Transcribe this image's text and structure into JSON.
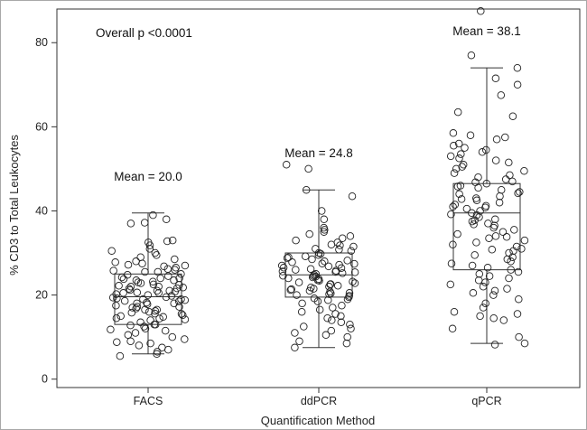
{
  "chart_data": {
    "type": "box-scatter",
    "title": "",
    "xlabel": "Quantification Method",
    "ylabel": "% CD3 to Total Leukocytes",
    "ylim": [
      -2,
      88
    ],
    "yticks": [
      0,
      20,
      40,
      60,
      80
    ],
    "categories": [
      "FACS",
      "ddPCR",
      "qPCR"
    ],
    "overall_p": "Overall p <0.0001",
    "grid": false,
    "series": [
      {
        "category": "FACS",
        "mean_label": "Mean = 20.0",
        "mean": 20.0,
        "box": {
          "whisker_low": 6,
          "q1": 13,
          "median": 19.6,
          "q3": 25,
          "whisker_high": 39.5
        },
        "points": [
          38,
          39,
          37.2,
          37,
          33,
          32.8,
          32.5,
          31.8,
          31,
          30.5,
          30,
          29.5,
          29,
          28.5,
          28,
          27.5,
          27.2,
          27,
          26.8,
          26.5,
          26,
          25.8,
          25.5,
          25,
          24.8,
          24.5,
          24.2,
          24,
          23.8,
          23.5,
          23.2,
          23,
          22.8,
          22.5,
          22.2,
          22,
          21.8,
          21.5,
          21.2,
          21,
          20.8,
          20.5,
          20.2,
          20,
          19.8,
          19.5,
          19.2,
          19,
          18.8,
          18.5,
          18.2,
          18,
          17.8,
          17.5,
          17.2,
          17,
          16.8,
          16.5,
          16.2,
          16,
          15.8,
          15.5,
          15.2,
          15,
          14.8,
          14.5,
          14.2,
          14,
          13.5,
          13,
          12.5,
          12,
          11.8,
          11.5,
          11,
          10.5,
          10,
          9.5,
          9,
          8.8,
          8.5,
          8,
          7.5,
          7,
          6.5,
          6,
          5.5,
          16.5,
          13,
          20.5,
          22,
          19,
          21,
          24,
          18,
          17.2,
          23.5,
          25.5,
          12.8,
          15.6,
          19.4,
          20.6,
          21.6,
          18.6,
          22.4,
          14.4,
          26.2,
          27.8
        ]
      },
      {
        "category": "ddPCR",
        "mean_label": "Mean = 24.8",
        "mean": 24.8,
        "box": {
          "whisker_low": 7.5,
          "q1": 19.5,
          "median": 24.8,
          "q3": 30,
          "whisker_high": 45
        },
        "points": [
          51,
          50,
          45,
          43.5,
          40,
          38,
          36,
          35.5,
          35,
          34.5,
          34,
          33.5,
          33,
          32.5,
          32,
          31.5,
          31,
          30.5,
          30,
          29.8,
          29.5,
          29,
          28.8,
          28.5,
          28.2,
          28,
          27.8,
          27.5,
          27.2,
          27,
          26.8,
          26.5,
          26.2,
          26,
          25.8,
          25.5,
          25.2,
          25,
          24.8,
          24.5,
          24.2,
          24,
          23.8,
          23.5,
          23.2,
          23,
          22.8,
          22.5,
          22.2,
          22,
          21.8,
          21.5,
          21.2,
          21,
          20.8,
          20.5,
          20.2,
          20,
          19.8,
          19.5,
          19,
          18.5,
          18,
          17.5,
          17,
          16.5,
          16,
          15.5,
          15,
          14.5,
          14,
          13.5,
          13,
          12.5,
          12,
          11.5,
          11,
          10.5,
          10,
          9,
          8.5,
          7.5,
          24.6,
          25.4,
          26.4,
          23.4,
          22.6,
          27.4,
          29.2,
          30.8,
          31.8,
          21.4,
          20.4,
          19.2,
          18.8,
          25.6,
          24.4
        ]
      },
      {
        "category": "qPCR",
        "mean_label": "Mean = 38.1",
        "mean": 38.1,
        "box": {
          "whisker_low": 8.5,
          "q1": 26,
          "median": 39.5,
          "q3": 46.5,
          "whisker_high": 74
        },
        "points": [
          87.5,
          77,
          74,
          71.5,
          70,
          67.5,
          63.5,
          62.5,
          58.5,
          58,
          57.5,
          57,
          56,
          55.5,
          55,
          54.5,
          54,
          53.5,
          53,
          52.5,
          52,
          51.5,
          51,
          50.5,
          50,
          49.5,
          49,
          48.5,
          48,
          47.5,
          47,
          46.5,
          46,
          45.5,
          45,
          44.5,
          44,
          43.5,
          43,
          42.5,
          42,
          41.5,
          41,
          40.5,
          40,
          39.5,
          39,
          38.5,
          38,
          37.5,
          37,
          36.5,
          36,
          35.5,
          35,
          34.5,
          34,
          33.5,
          33,
          32.5,
          32,
          31.5,
          31,
          30.5,
          30,
          29.5,
          29,
          28.5,
          28,
          27.5,
          27,
          26.5,
          26,
          25.5,
          25,
          24.5,
          24,
          23.5,
          23,
          22.5,
          22,
          21.5,
          21,
          20.5,
          20,
          19,
          18,
          17,
          16,
          15.5,
          15,
          14.5,
          14,
          12,
          10,
          8.5,
          8.2,
          45.8,
          41.2,
          39.2,
          36.8,
          42.8,
          44.2,
          37.8,
          33.8,
          40.8,
          30.8,
          46.8
        ]
      }
    ]
  }
}
